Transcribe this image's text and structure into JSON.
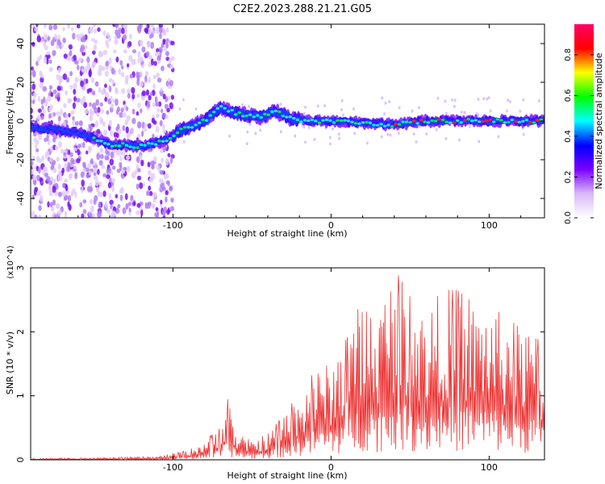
{
  "title": "C2E2.2023.288.21.21.G05",
  "colors": {
    "spectrum_background": "#ffffff",
    "snr_line": "#ee3333",
    "axis": "#000000"
  },
  "chart_data": [
    {
      "type": "heatmap",
      "xlabel": "Height of straight line (km)",
      "ylabel": "Frequency (Hz)",
      "xlim": [
        -190,
        135
      ],
      "ylim": [
        -50,
        50
      ],
      "x_ticks": [
        -100,
        0,
        100
      ],
      "y_ticks": [
        -40,
        -20,
        0,
        20,
        40
      ],
      "grid": false,
      "colorbar": {
        "label": "Normalized spectral amplitude",
        "range": [
          0.0,
          0.95
        ],
        "ticks": [
          0.0,
          0.2,
          0.4,
          0.6,
          0.8
        ],
        "palette": [
          "#ffffff",
          "#d9b8f5",
          "#7a00ff",
          "#0000ff",
          "#00ffff",
          "#00ff00",
          "#ffff00",
          "#ff0000",
          "#ff0066"
        ]
      },
      "ridge_frequency_by_height": {
        "x": [
          -190,
          -160,
          -140,
          -120,
          -105,
          -95,
          -80,
          -70,
          -60,
          -45,
          -35,
          -25,
          -10,
          0,
          20,
          40,
          60,
          80,
          100,
          120,
          135
        ],
        "y": [
          -3,
          -6,
          -12,
          -13,
          -10,
          -5,
          0,
          7,
          4,
          2,
          5,
          1,
          0,
          0,
          -1,
          -2,
          0,
          0,
          0,
          0,
          0
        ]
      }
    },
    {
      "type": "line",
      "xlabel": "Height of straight line (km)",
      "ylabel": "SNR (10 * v/v)",
      "y_multiplier": "(x10^4)",
      "xlim": [
        -190,
        135
      ],
      "ylim": [
        0,
        3
      ],
      "x_ticks": [
        -100,
        0,
        100
      ],
      "y_ticks": [
        0,
        1,
        2,
        3
      ],
      "grid": false,
      "series": [
        {
          "x": [
            -190,
            -170,
            -150,
            -130,
            -110,
            -100,
            -90,
            -80,
            -70,
            -65,
            -60,
            -50,
            -40,
            -30,
            -20,
            -10,
            0,
            10,
            20,
            30,
            40,
            50,
            60,
            70,
            80,
            90,
            100,
            110,
            120,
            130,
            135
          ],
          "y": [
            0.02,
            0.03,
            0.03,
            0.04,
            0.05,
            0.1,
            0.15,
            0.3,
            0.5,
            0.98,
            0.4,
            0.3,
            0.4,
            0.7,
            1.05,
            1.4,
            1.5,
            1.9,
            2.55,
            2.4,
            3.0,
            2.55,
            2.3,
            2.65,
            2.65,
            2.45,
            2.4,
            2.25,
            2.05,
            2.0,
            1.35
          ]
        }
      ]
    }
  ]
}
